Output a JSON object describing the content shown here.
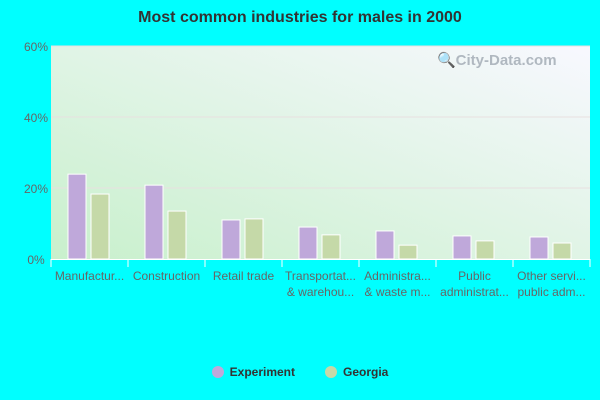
{
  "chart_data": {
    "type": "bar",
    "title": "Most common industries for males in 2000",
    "categories": [
      [
        "Manufactur..."
      ],
      [
        "Construction"
      ],
      [
        "Retail trade"
      ],
      [
        "Transportat...",
        "& warehou..."
      ],
      [
        "Administra...",
        "& waste m..."
      ],
      [
        "Public",
        "administrat..."
      ],
      [
        "Other servi...",
        "public adm..."
      ]
    ],
    "series": [
      {
        "name": "Experiment",
        "color": "#bfa8da",
        "values": [
          23.9,
          20.8,
          11.0,
          9.0,
          7.9,
          6.5,
          6.2
        ]
      },
      {
        "name": "Georgia",
        "color": "#c5d9a8",
        "values": [
          18.3,
          13.5,
          11.3,
          6.8,
          3.9,
          5.1,
          4.5
        ]
      }
    ],
    "yticks": [
      "0%",
      "20%",
      "40%",
      "60%"
    ],
    "ylim": [
      0,
      60
    ],
    "grid": true,
    "legend": "bottom"
  },
  "watermark": "City-Data.com"
}
